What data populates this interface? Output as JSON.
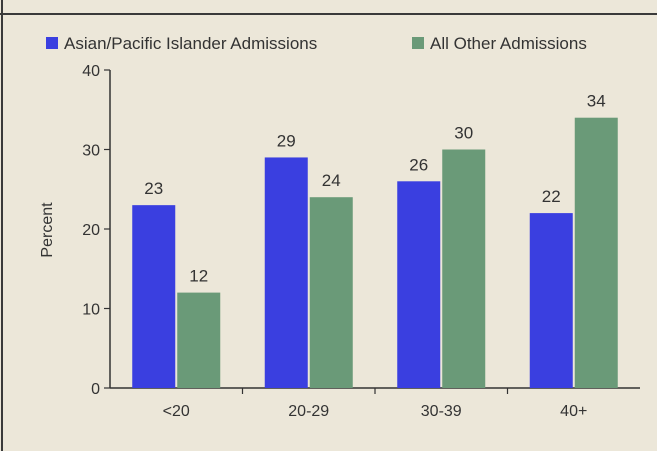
{
  "chart_data": {
    "type": "bar",
    "title": "",
    "xlabel": "",
    "ylabel": "Percent",
    "ylim": [
      0,
      40
    ],
    "yticks": [
      0,
      10,
      20,
      30,
      40
    ],
    "grid": false,
    "legend_position": "top",
    "categories": [
      "<20",
      "20-29",
      "30-39",
      "40+"
    ],
    "series": [
      {
        "name": "Asian/Pacific Islander Admissions",
        "values": [
          23,
          29,
          26,
          22
        ],
        "color": "#3a3fe0"
      },
      {
        "name": "All Other Admissions",
        "values": [
          12,
          24,
          30,
          34
        ],
        "color": "#6a9a78"
      }
    ]
  }
}
